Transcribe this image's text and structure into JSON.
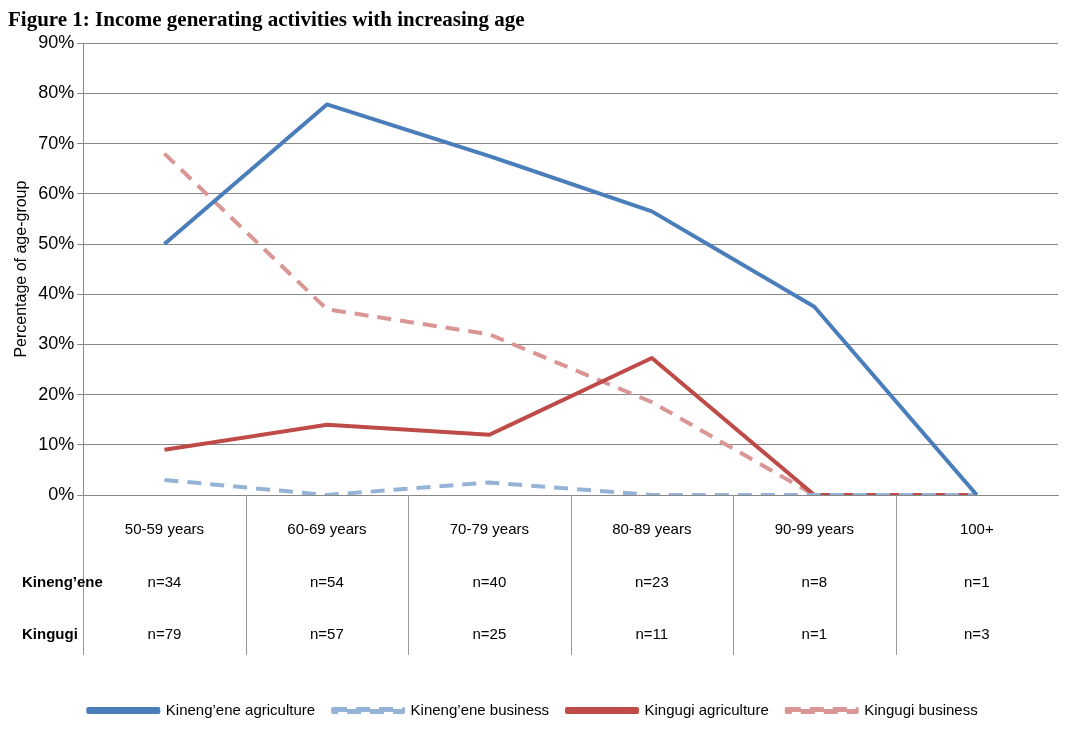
{
  "chart_data": {
    "type": "line",
    "title": "Figure 1: Income generating activities with increasing age",
    "ylabel": "Percentage of age-group",
    "categories": [
      "50-59 years",
      "60-69 years",
      "70-79 years",
      "80-89 years",
      "90-99 years",
      "100+"
    ],
    "series": [
      {
        "name": "Kineng’ene agriculture",
        "color": "#4a7ebb",
        "line_style": "solid",
        "values": [
          50,
          77.8,
          67.5,
          56.5,
          37.5,
          0
        ]
      },
      {
        "name": "Kineng’ene business",
        "color": "#95b3d7",
        "line_style": "dashed",
        "values": [
          3,
          0,
          2.5,
          0,
          0,
          0
        ]
      },
      {
        "name": "Kingugi agriculture",
        "color": "#be4b48",
        "line_style": "solid",
        "values": [
          9,
          14,
          12,
          27.3,
          0,
          0
        ]
      },
      {
        "name": "Kingugi business",
        "color": "#d99694",
        "line_style": "dashed",
        "values": [
          68,
          37,
          32,
          18.5,
          0,
          0
        ]
      }
    ],
    "ylim": [
      0,
      90
    ],
    "yticks": [
      {
        "value": 0,
        "label": "0%"
      },
      {
        "value": 10,
        "label": "10%"
      },
      {
        "value": 20,
        "label": "20%"
      },
      {
        "value": 30,
        "label": "30%"
      },
      {
        "value": 40,
        "label": "40%"
      },
      {
        "value": 50,
        "label": "50%"
      },
      {
        "value": 60,
        "label": "60%"
      },
      {
        "value": 70,
        "label": "70%"
      },
      {
        "value": 80,
        "label": "80%"
      },
      {
        "value": 90,
        "label": "90%"
      }
    ],
    "grid": "y",
    "legend": "bottom",
    "marker": "none",
    "annotations": [
      "Kineng’ene",
      "n=34",
      "n=54",
      "n=40",
      "n=23",
      "n=8",
      "n=1",
      "Kingugi",
      "n=79",
      "n=57",
      "n=25",
      "n=11",
      "n=1",
      "n=3"
    ]
  }
}
